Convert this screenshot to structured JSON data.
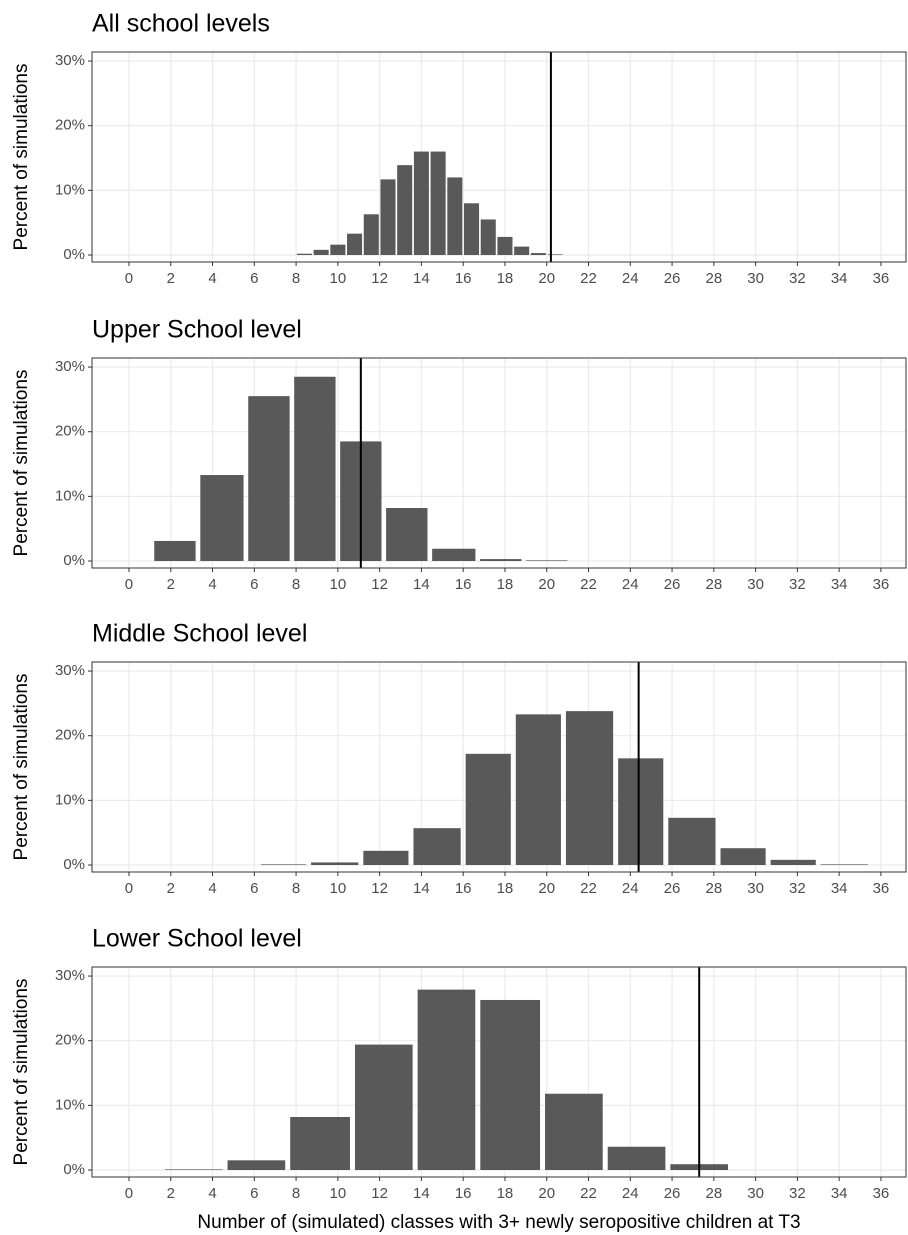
{
  "chart_data": [
    {
      "type": "histogram",
      "title": "All school levels",
      "ylabel": "Percent of simulations",
      "color": "#595959",
      "bins": [
        8,
        8.8,
        9.6,
        10.4,
        11.2,
        12,
        12.8,
        13.6,
        14.4,
        15.2,
        16,
        16.8,
        17.6,
        18.4,
        19.2,
        20,
        20.8
      ],
      "values": [
        0.2,
        0.8,
        1.6,
        3.3,
        6.3,
        11.7,
        13.9,
        16,
        16,
        12,
        8,
        5.5,
        2.8,
        1.3,
        0.3,
        0.1
      ],
      "vline": 20.2,
      "xlim": [
        -1.77,
        37.2
      ],
      "ylim": [
        -1.08,
        31.4
      ],
      "xticks": [
        0,
        2,
        4,
        6,
        8,
        10,
        12,
        14,
        16,
        18,
        20,
        22,
        24,
        26,
        28,
        30,
        32,
        34,
        36
      ],
      "yticks": [
        {
          "value": 0,
          "label": "0%"
        },
        {
          "value": 10,
          "label": "10%"
        },
        {
          "value": 20,
          "label": "20%"
        },
        {
          "value": 30,
          "label": "30%"
        }
      ],
      "grid": true
    },
    {
      "type": "histogram",
      "title": "Upper School level",
      "ylabel": "Percent of simulations",
      "color": "#595959",
      "bins": [
        1.1,
        3.3,
        5.6,
        7.8,
        10,
        12.2,
        14.4,
        16.7,
        18.9,
        21.1
      ],
      "values": [
        3.1,
        13.3,
        25.5,
        28.5,
        18.5,
        8.2,
        1.9,
        0.3,
        0.1
      ],
      "vline": 11.1,
      "xlim": [
        -1.77,
        37.2
      ],
      "ylim": [
        -1.08,
        31.4
      ],
      "xticks": [
        0,
        2,
        4,
        6,
        8,
        10,
        12,
        14,
        16,
        18,
        20,
        22,
        24,
        26,
        28,
        30,
        32,
        34,
        36
      ],
      "yticks": [
        {
          "value": 0,
          "label": "0%"
        },
        {
          "value": 10,
          "label": "10%"
        },
        {
          "value": 20,
          "label": "20%"
        },
        {
          "value": 30,
          "label": "30%"
        }
      ],
      "grid": true
    },
    {
      "type": "histogram",
      "title": "Middle School level",
      "ylabel": "Percent of simulations",
      "color": "#595959",
      "bins": [
        6.2,
        8.6,
        11.1,
        13.5,
        16,
        18.4,
        20.8,
        23.3,
        25.7,
        28.2,
        30.6,
        33,
        35.5
      ],
      "values": [
        0.1,
        0.4,
        2.2,
        5.7,
        17.2,
        23.3,
        23.8,
        16.5,
        7.3,
        2.6,
        0.8,
        0.1
      ],
      "vline": 24.4,
      "xlim": [
        -1.77,
        37.2
      ],
      "ylim": [
        -1.08,
        31.4
      ],
      "xticks": [
        0,
        2,
        4,
        6,
        8,
        10,
        12,
        14,
        16,
        18,
        20,
        22,
        24,
        26,
        28,
        30,
        32,
        34,
        36
      ],
      "yticks": [
        {
          "value": 0,
          "label": "0%"
        },
        {
          "value": 10,
          "label": "10%"
        },
        {
          "value": 20,
          "label": "20%"
        },
        {
          "value": 30,
          "label": "30%"
        }
      ],
      "grid": true
    },
    {
      "type": "histogram",
      "title": "Lower School level",
      "ylabel": "Percent of simulations",
      "xlabel": "Number of (simulated) classes with 3+ newly seropositive children at T3",
      "color": "#595959",
      "bins": [
        1.6,
        4.6,
        7.6,
        10.7,
        13.7,
        16.7,
        19.8,
        22.8,
        25.8,
        28.8
      ],
      "values": [
        0.1,
        1.5,
        8.2,
        19.4,
        27.9,
        26.3,
        11.8,
        3.6,
        0.9
      ],
      "vline": 27.3,
      "xlim": [
        -1.77,
        37.2
      ],
      "ylim": [
        -1.08,
        31.4
      ],
      "xticks": [
        0,
        2,
        4,
        6,
        8,
        10,
        12,
        14,
        16,
        18,
        20,
        22,
        24,
        26,
        28,
        30,
        32,
        34,
        36
      ],
      "yticks": [
        {
          "value": 0,
          "label": "0%"
        },
        {
          "value": 10,
          "label": "10%"
        },
        {
          "value": 20,
          "label": "20%"
        },
        {
          "value": 30,
          "label": "30%"
        }
      ],
      "grid": true
    }
  ]
}
